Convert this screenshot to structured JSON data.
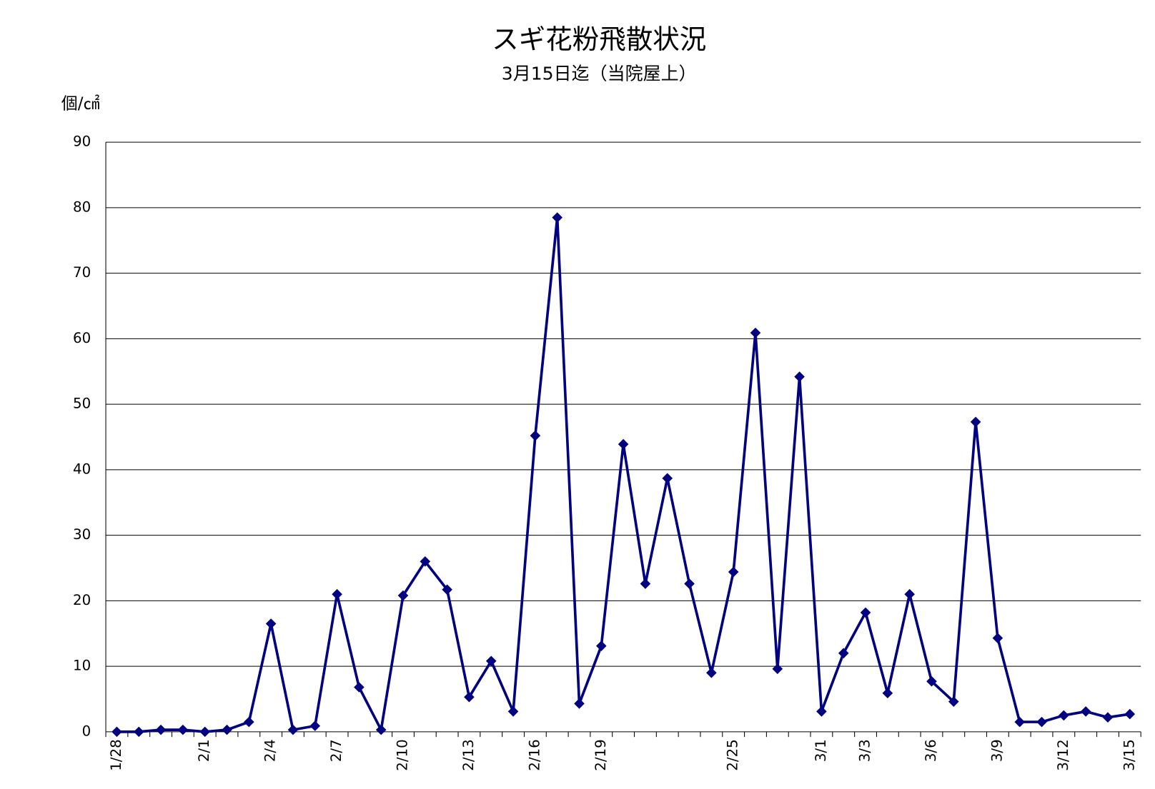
{
  "chart_data": {
    "type": "line",
    "title": "スギ花粉飛散状況",
    "subtitle": "3月15日迄（当院屋上）",
    "y_label": "個/㎠",
    "categories": [
      "1/28",
      null,
      null,
      null,
      "2/1",
      null,
      null,
      "2/4",
      null,
      null,
      "2/7",
      null,
      null,
      "2/10",
      null,
      null,
      "2/13",
      null,
      null,
      "2/16",
      null,
      null,
      "2/19",
      null,
      null,
      null,
      null,
      null,
      "2/25",
      null,
      null,
      null,
      "3/1",
      null,
      "3/3",
      null,
      null,
      "3/6",
      null,
      null,
      "3/9",
      null,
      null,
      "3/12",
      null,
      null,
      "3/15"
    ],
    "series": [
      {
        "name": "スギ",
        "color": "#000080",
        "values": [
          0,
          0,
          0.3,
          0.3,
          0,
          0.3,
          1.5,
          16.5,
          0.3,
          0.9,
          21,
          6.8,
          0.3,
          20.8,
          26,
          21.7,
          5.3,
          10.8,
          3.1,
          45.2,
          78.5,
          4.3,
          13.1,
          43.9,
          22.6,
          38.7,
          22.6,
          9,
          24.4,
          60.9,
          9.6,
          54.2,
          3.1,
          12,
          18.2,
          5.9,
          21,
          7.7,
          4.6,
          47.3,
          14.3,
          1.5,
          1.5,
          2.5,
          3.1,
          2.2,
          2.7
        ]
      }
    ],
    "ylim": [
      0,
      90
    ],
    "yticks": [
      0,
      10,
      20,
      30,
      40,
      50,
      60,
      70,
      80,
      90
    ],
    "grid": true
  }
}
